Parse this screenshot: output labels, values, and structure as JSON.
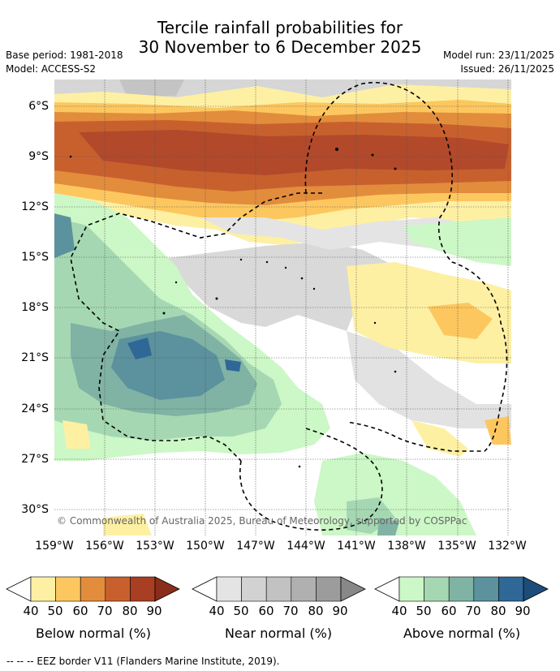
{
  "header": {
    "title_line1": "Tercile rainfall probabilities for",
    "title_line2": "30 November to 6 December 2025",
    "base_period": "Base period: 1981-2018",
    "model": "Model: ACCESS-S2",
    "model_run": "Model run: 23/11/2025",
    "issued": "Issued: 26/11/2025"
  },
  "map": {
    "copyright": "© Commonwealth of Australia 2025, Bureau of Meteorology, supported by COSPPac",
    "lat_labels": [
      "6°S",
      "9°S",
      "12°S",
      "15°S",
      "18°S",
      "21°S",
      "24°S",
      "27°S",
      "30°S"
    ],
    "lon_labels": [
      "159°W",
      "156°W",
      "153°W",
      "150°W",
      "147°W",
      "144°W",
      "141°W",
      "138°W",
      "135°W",
      "132°W"
    ]
  },
  "colorbars": [
    {
      "name": "Below normal (%)",
      "ticks": [
        "40",
        "50",
        "60",
        "70",
        "80",
        "90"
      ],
      "colors": [
        "#fef0a3",
        "#fdc75f",
        "#e28d3c",
        "#c8602e",
        "#a93e22",
        "#8a2d1a"
      ]
    },
    {
      "name": "Near normal (%)",
      "ticks": [
        "40",
        "50",
        "60",
        "70",
        "80",
        "90"
      ],
      "colors": [
        "#e4e4e4",
        "#d2d2d2",
        "#c2c2c2",
        "#b0b0b0",
        "#9c9c9c",
        "#888888"
      ]
    },
    {
      "name": "Above normal (%)",
      "ticks": [
        "40",
        "50",
        "60",
        "70",
        "80",
        "90"
      ],
      "colors": [
        "#ccf7c6",
        "#a5d8b2",
        "#80b3a4",
        "#5b929d",
        "#2f6797",
        "#1c4c7a"
      ]
    }
  ],
  "footnote": "--  --  -- EEZ border V11 (Flanders Marine Institute, 2019)."
}
